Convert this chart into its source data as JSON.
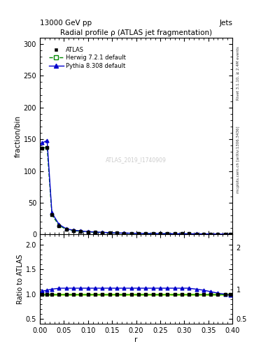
{
  "title": "Radial profile ρ (ATLAS jet fragmentation)",
  "top_left_label": "13000 GeV pp",
  "top_right_label": "Jets",
  "watermark": "ATLAS_2019_I1740909",
  "right_label_top": "Rivet 3.1.10, ≥ 2.4M events",
  "right_label_bot": "mcplots.cern.ch [arXiv:1306.3436]",
  "ylabel_main": "fraction/bin",
  "ylabel_ratio": "Ratio to ATLAS",
  "xlabel": "r",
  "main_ylim": [
    0,
    310
  ],
  "main_yticks": [
    0,
    50,
    100,
    150,
    200,
    250,
    300
  ],
  "ratio_ylim": [
    0.4,
    2.2
  ],
  "ratio_yticks": [
    0.5,
    1.0,
    1.5,
    2.0
  ],
  "xlim": [
    0.0,
    0.4
  ],
  "xticks": [
    0.0,
    0.1,
    0.2,
    0.3,
    0.4
  ],
  "r_values": [
    0.005,
    0.015,
    0.025,
    0.04,
    0.055,
    0.07,
    0.085,
    0.1,
    0.115,
    0.13,
    0.145,
    0.16,
    0.175,
    0.19,
    0.205,
    0.22,
    0.235,
    0.25,
    0.265,
    0.28,
    0.295,
    0.31,
    0.325,
    0.34,
    0.355,
    0.37,
    0.385,
    0.395
  ],
  "atlas_y": [
    136,
    137,
    31,
    14,
    8.0,
    6.0,
    5.0,
    4.0,
    3.5,
    3.0,
    2.5,
    2.2,
    2.0,
    1.8,
    1.6,
    1.5,
    1.4,
    1.3,
    1.2,
    1.1,
    1.0,
    0.95,
    0.9,
    0.85,
    0.8,
    0.75,
    0.7,
    0.65
  ],
  "herwig_y": [
    136,
    137,
    31,
    14,
    8.0,
    6.0,
    5.0,
    4.0,
    3.5,
    3.0,
    2.5,
    2.2,
    2.0,
    1.8,
    1.6,
    1.5,
    1.4,
    1.3,
    1.2,
    1.1,
    1.0,
    0.95,
    0.9,
    0.85,
    0.8,
    0.75,
    0.7,
    0.65
  ],
  "pythia_ratio": [
    1.06,
    1.08,
    1.1,
    1.12,
    1.12,
    1.12,
    1.12,
    1.12,
    1.12,
    1.12,
    1.12,
    1.12,
    1.12,
    1.12,
    1.12,
    1.12,
    1.12,
    1.12,
    1.12,
    1.12,
    1.12,
    1.12,
    1.1,
    1.08,
    1.05,
    1.02,
    1.0,
    0.98
  ],
  "herwig_ratio": [
    1.0,
    1.0,
    1.0,
    1.0,
    1.0,
    1.0,
    1.0,
    1.0,
    1.0,
    1.0,
    1.0,
    1.0,
    1.0,
    1.0,
    1.0,
    1.0,
    1.0,
    1.0,
    1.0,
    1.0,
    1.0,
    1.0,
    1.0,
    1.0,
    1.0,
    1.0,
    1.0,
    1.0
  ],
  "atlas_color": "#000000",
  "herwig_color": "#008800",
  "pythia_color": "#0000cc",
  "herwig_band_color": "#ccff44",
  "bg_color": "#ffffff",
  "legend_entries": [
    "ATLAS",
    "Herwig 7.2.1 default",
    "Pythia 8.308 default"
  ]
}
